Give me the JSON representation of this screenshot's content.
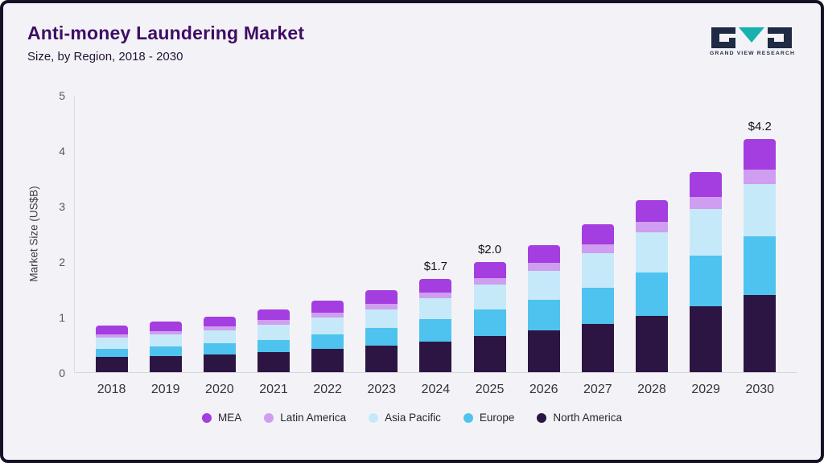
{
  "header": {
    "title": "Anti-money Laundering Market",
    "subtitle": "Size, by Region, 2018 - 2030"
  },
  "logo": {
    "text": "GRAND VIEW RESEARCH",
    "navy": "#1f2a44",
    "teal": "#18b1af"
  },
  "chart_data": {
    "type": "bar",
    "stacked": true,
    "title": "Anti-money Laundering Market Size, by Region, 2018 - 2030",
    "ylabel": "Market Size (US$B)",
    "ylim": [
      0,
      5
    ],
    "yticks": [
      0,
      1,
      2,
      3,
      4,
      5
    ],
    "grid": false,
    "legend_position": "bottom",
    "categories": [
      "2018",
      "2019",
      "2020",
      "2021",
      "2022",
      "2023",
      "2024",
      "2025",
      "2026",
      "2027",
      "2028",
      "2029",
      "2030"
    ],
    "series": [
      {
        "name": "North America",
        "color": "#2d1543",
        "values": [
          0.29,
          0.31,
          0.34,
          0.38,
          0.43,
          0.5,
          0.57,
          0.66,
          0.77,
          0.89,
          1.03,
          1.21,
          1.4
        ]
      },
      {
        "name": "Europe",
        "color": "#4ec3ef",
        "values": [
          0.15,
          0.17,
          0.19,
          0.22,
          0.26,
          0.31,
          0.4,
          0.48,
          0.55,
          0.65,
          0.78,
          0.9,
          1.06
        ]
      },
      {
        "name": "Asia Pacific",
        "color": "#c6e9f9",
        "values": [
          0.2,
          0.22,
          0.24,
          0.27,
          0.31,
          0.34,
          0.38,
          0.45,
          0.52,
          0.62,
          0.73,
          0.85,
          0.94
        ]
      },
      {
        "name": "Latin America",
        "color": "#cf9ef0",
        "values": [
          0.06,
          0.06,
          0.07,
          0.08,
          0.09,
          0.1,
          0.1,
          0.12,
          0.14,
          0.16,
          0.19,
          0.22,
          0.26
        ]
      },
      {
        "name": "MEA",
        "color": "#a43ee0",
        "values": [
          0.15,
          0.17,
          0.18,
          0.2,
          0.22,
          0.24,
          0.25,
          0.29,
          0.33,
          0.36,
          0.38,
          0.45,
          0.56
        ]
      }
    ],
    "annotations": {
      "2024": "$1.7",
      "2025": "$2.0",
      "2030": "$4.2"
    },
    "legend": [
      {
        "label": "MEA",
        "color": "#a43ee0"
      },
      {
        "label": "Latin America",
        "color": "#cf9ef0"
      },
      {
        "label": "Asia Pacific",
        "color": "#c6e9f9"
      },
      {
        "label": "Europe",
        "color": "#4ec3ef"
      },
      {
        "label": "North America",
        "color": "#2d1543"
      }
    ]
  }
}
